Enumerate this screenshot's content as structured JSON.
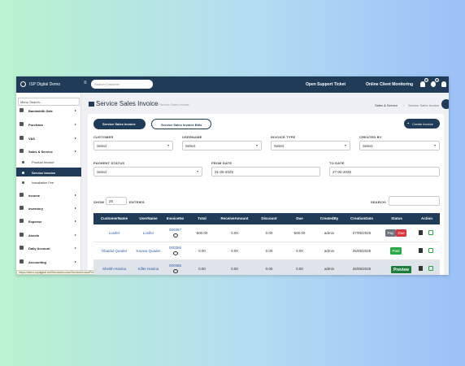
{
  "topbar": {
    "brand": "ISP Digital Demo",
    "search_placeholder": "Search Customer",
    "support": "Open Support Ticket",
    "monitoring": "Online Client Monitoring",
    "badges": [
      "0",
      "0"
    ]
  },
  "sidebar": {
    "search_placeholder": "Menu Search...",
    "menu": [
      "Bandwidth Sale",
      "Purchase",
      "VAS",
      "Sales & Service",
      "Income",
      "Inventory",
      "Expense",
      "Assets",
      "Daily Account",
      "Accounting"
    ],
    "submenu": [
      "Product Invoice",
      "Service Invoice",
      "Installation Fee"
    ]
  },
  "page": {
    "title": "Service Sales Invoice",
    "subtitle": "All Service Sales Invoice",
    "breadcrumb": [
      "Sales & Service",
      "Service Sales Invoice"
    ]
  },
  "tabs": [
    "Service Sales Invoice",
    "Service Sales Invoice Bills"
  ],
  "create_button": "Create Invoice",
  "filters": [
    {
      "label": "CUSTOMER",
      "value": "Select"
    },
    {
      "label": "USERNAME",
      "value": "Select"
    },
    {
      "label": "INVOICE TYPE",
      "value": "Select"
    },
    {
      "label": "CREATED BY",
      "value": "Select"
    },
    {
      "label": "PAYMENT STATUS",
      "value": "Select"
    },
    {
      "label": "FROM DATE",
      "value": "01-05-2025"
    },
    {
      "label": "TO DATE",
      "value": "27-05-2025"
    }
  ],
  "table_controls": {
    "show": "SHOW",
    "entries_value": "25",
    "entries": "ENTRIES",
    "search": "SEARCH:"
  },
  "table": {
    "columns": [
      "CustomerName",
      "UserName",
      "InvoiceNo",
      "Total",
      "ReceiveAmount",
      "Discount",
      "Due",
      "CreatedBy",
      "CreationDate",
      "Status",
      "Action"
    ],
    "rows": [
      {
        "cells": [
          "Lusifer",
          "Lusifer",
          "000367",
          "500.00",
          "0.00",
          "0.00",
          "500.00",
          "admin",
          "27/05/2025"
        ],
        "status": [
          "Pay",
          "Due"
        ]
      },
      {
        "cells": [
          "Obaidul Quader",
          "Kauwa Quader",
          "000366",
          "0.00",
          "0.00",
          "0.00",
          "0.00",
          "admin",
          "26/05/2025"
        ],
        "status": [
          "Paid"
        ]
      },
      {
        "cells": [
          "Sheikh Hasina",
          "Killer Hasina",
          "000365",
          "0.00",
          "0.00",
          "0.00",
          "0.00",
          "admin",
          "26/05/2025"
        ],
        "status": []
      }
    ],
    "tooltip": "Preview"
  },
  "status_url": "https://demo.ispdigital.net/ServiceInvoice/ServiceInvoicePreview?id=365"
}
